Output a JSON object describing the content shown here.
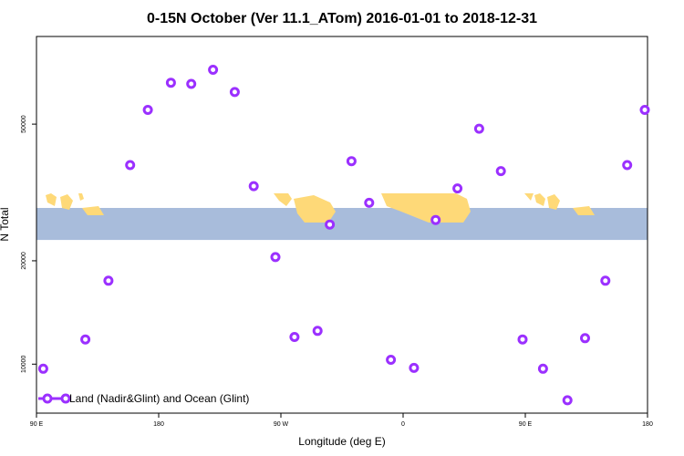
{
  "chart_data": {
    "type": "scatter",
    "title": "0-15N October (Ver 11.1_ATom)   2016-01-01 to 2018-12-31",
    "xlabel": "Longitude (deg E)",
    "ylabel": "N Total",
    "x_ticks": [
      {
        "value": 90,
        "label": "90 E"
      },
      {
        "value": 180,
        "label": "180"
      },
      {
        "value": 270,
        "label": "90 W"
      },
      {
        "value": 360,
        "label": "0"
      },
      {
        "value": 450,
        "label": "90 E"
      },
      {
        "value": 540,
        "label": "180"
      }
    ],
    "y_ticks": [
      {
        "value": 10000,
        "label": "10000"
      },
      {
        "value": 20000,
        "label": "20000"
      },
      {
        "value": 50000,
        "label": "50000"
      }
    ],
    "y_scale": "log",
    "xlim": [
      90,
      540
    ],
    "ylim": [
      7200,
      90000
    ],
    "land_band_ylim": [
      23000,
      28500
    ],
    "series": [
      {
        "name": "Land (Nadir&Glint) and Ocean (Glint)",
        "color": "#9b30ff",
        "marker": "open-circle",
        "points": [
          {
            "x": 95,
            "y": 9700
          },
          {
            "x": 126,
            "y": 11800
          },
          {
            "x": 143,
            "y": 17500
          },
          {
            "x": 159,
            "y": 38000
          },
          {
            "x": 172,
            "y": 55000
          },
          {
            "x": 189,
            "y": 66000
          },
          {
            "x": 204,
            "y": 65500
          },
          {
            "x": 220,
            "y": 72000
          },
          {
            "x": 236,
            "y": 62000
          },
          {
            "x": 250,
            "y": 33000
          },
          {
            "x": 266,
            "y": 20500
          },
          {
            "x": 280,
            "y": 12000
          },
          {
            "x": 297,
            "y": 12500
          },
          {
            "x": 306,
            "y": 25500
          },
          {
            "x": 322,
            "y": 39000
          },
          {
            "x": 335,
            "y": 29500
          },
          {
            "x": 351,
            "y": 10300
          },
          {
            "x": 368,
            "y": 9750
          },
          {
            "x": 384,
            "y": 26300
          },
          {
            "x": 400,
            "y": 32500
          },
          {
            "x": 416,
            "y": 48500
          },
          {
            "x": 432,
            "y": 36500
          },
          {
            "x": 448,
            "y": 11800
          },
          {
            "x": 463,
            "y": 9700
          },
          {
            "x": 481,
            "y": 7850
          },
          {
            "x": 494,
            "y": 11900
          },
          {
            "x": 509,
            "y": 17500
          },
          {
            "x": 525,
            "y": 38000
          },
          {
            "x": 538,
            "y": 55000
          }
        ]
      }
    ],
    "legend": {
      "placement": "bottom-left"
    },
    "grid": false,
    "colors": {
      "ocean": "#a8bcdb",
      "land": "#fed978",
      "marker": "#9b30ff",
      "frame": "#000000"
    }
  }
}
